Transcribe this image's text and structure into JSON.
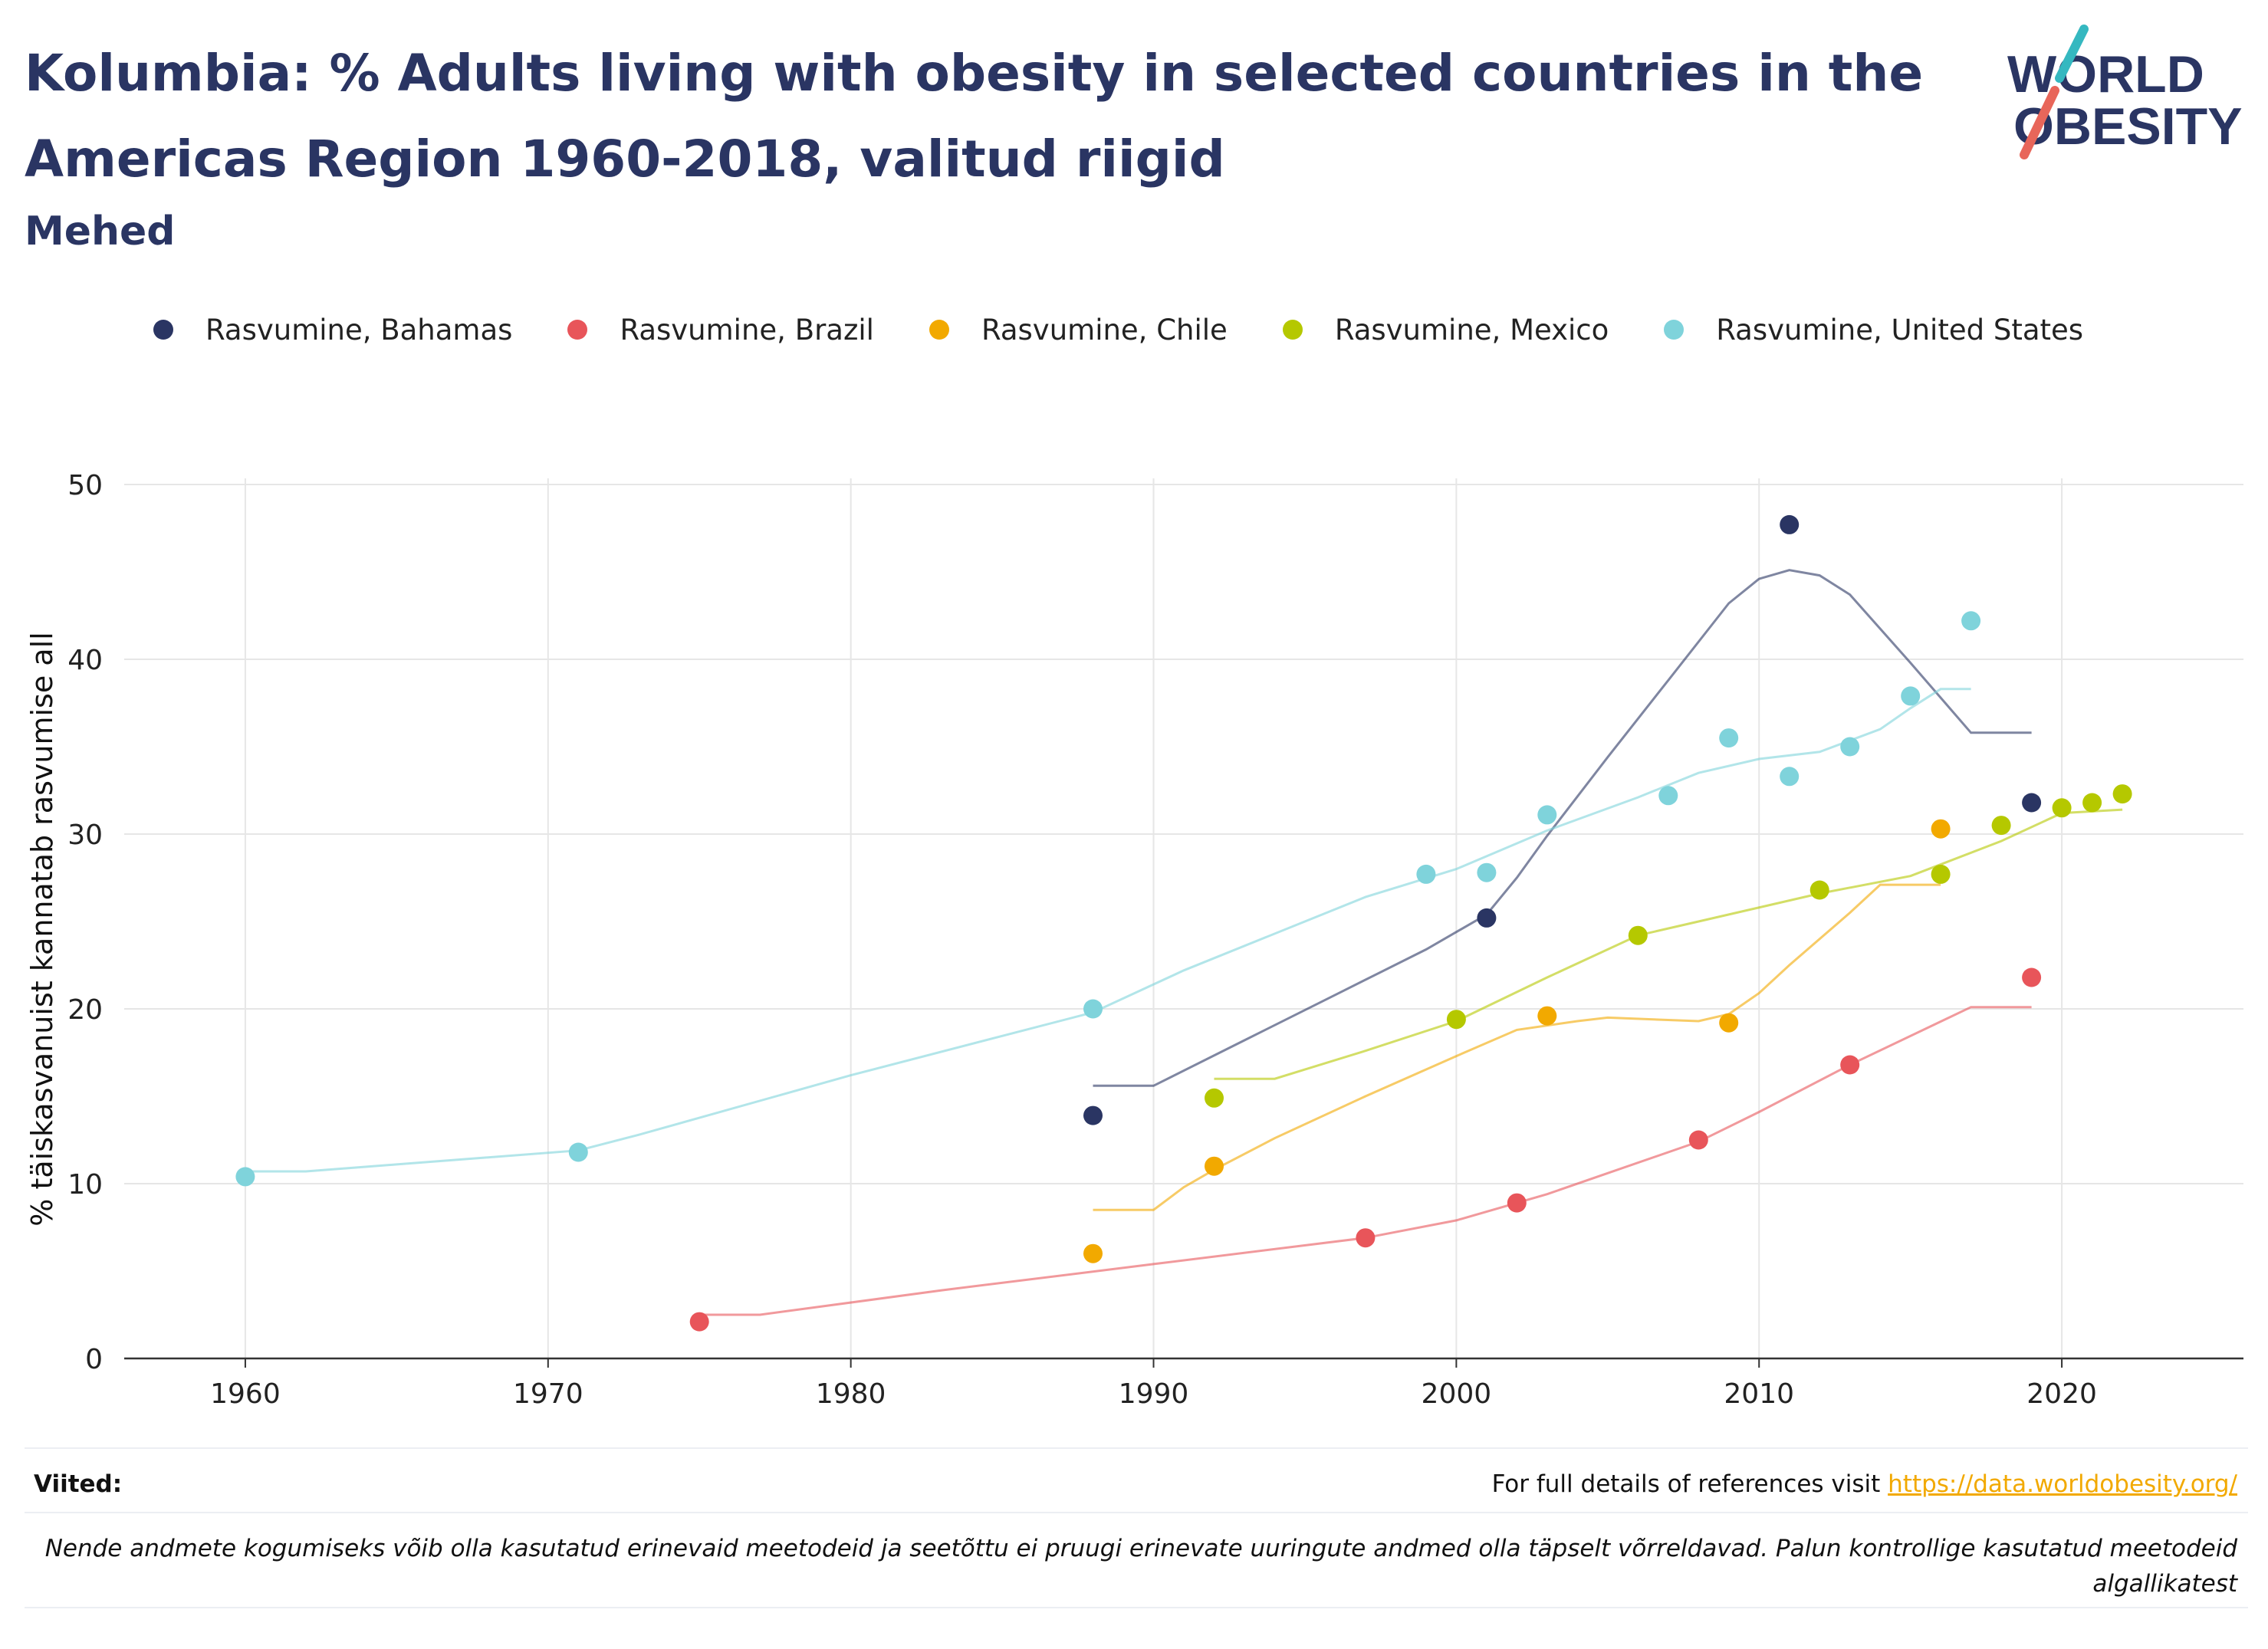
{
  "header": {
    "title": "Kolumbia: % Adults living with obesity in selected countries in the Americas Region 1960-2018, valitud riigid",
    "subtitle": "Mehed"
  },
  "logo": {
    "line1": "WORLD",
    "line2": "OBESITY"
  },
  "footer": {
    "references_label": "Viited:",
    "references_text": "For full details of references visit ",
    "references_link": "https://data.worldobesity.org/",
    "note": "Nende andmete kogumiseks võib olla kasutatud erinevaid meetodeid ja seetõttu ei pruugi erinevate uuringute andmed olla täpselt võrreldavad. Palun kontrollige kasutatud meetodeid algallikatest"
  },
  "chart_data": {
    "type": "scatter",
    "ylabel": "% täiskasvanuist kannatab rasvumise all",
    "xlim": [
      1956,
      2026
    ],
    "ylim": [
      0,
      50
    ],
    "x_ticks": [
      1960,
      1970,
      1980,
      1990,
      2000,
      2010,
      2020
    ],
    "y_ticks": [
      0,
      10,
      20,
      30,
      40,
      50
    ],
    "grid": true,
    "legend_position": "top",
    "series": [
      {
        "name": "Rasvumine, Bahamas",
        "color": "#2a3563",
        "points": [
          [
            1988,
            13.9
          ],
          [
            2001,
            25.2
          ],
          [
            2011,
            47.7
          ],
          [
            2019,
            31.8
          ]
        ],
        "trend": [
          [
            1988,
            15.6
          ],
          [
            1990,
            15.6
          ],
          [
            1993,
            18.2
          ],
          [
            1996,
            20.8
          ],
          [
            1999,
            23.4
          ],
          [
            2001,
            25.4
          ],
          [
            2002,
            27.5
          ],
          [
            2003,
            29.9
          ],
          [
            2005,
            34.4
          ],
          [
            2007,
            38.8
          ],
          [
            2009,
            43.2
          ],
          [
            2010,
            44.6
          ],
          [
            2011,
            45.1
          ],
          [
            2012,
            44.8
          ],
          [
            2013,
            43.7
          ],
          [
            2015,
            39.8
          ],
          [
            2017,
            35.8
          ],
          [
            2019,
            35.8
          ]
        ]
      },
      {
        "name": "Rasvumine, Brazil",
        "color": "#e8555a",
        "points": [
          [
            1975,
            2.1
          ],
          [
            1997,
            6.9
          ],
          [
            2002,
            8.9
          ],
          [
            2008,
            12.5
          ],
          [
            2013,
            16.8
          ],
          [
            2019,
            21.8
          ]
        ],
        "trend": [
          [
            1975,
            2.5
          ],
          [
            1977,
            2.5
          ],
          [
            1983,
            3.9
          ],
          [
            1990,
            5.4
          ],
          [
            1997,
            6.9
          ],
          [
            2000,
            7.9
          ],
          [
            2003,
            9.4
          ],
          [
            2005,
            10.6
          ],
          [
            2008,
            12.4
          ],
          [
            2010,
            14.1
          ],
          [
            2013,
            16.8
          ],
          [
            2017,
            20.1
          ],
          [
            2019,
            20.1
          ]
        ]
      },
      {
        "name": "Rasvumine, Chile",
        "color": "#f2a900",
        "points": [
          [
            1988,
            6.0
          ],
          [
            1992,
            11.0
          ],
          [
            2003,
            19.6
          ],
          [
            2009,
            19.2
          ],
          [
            2016,
            30.3
          ]
        ],
        "trend": [
          [
            1988,
            8.5
          ],
          [
            1990,
            8.5
          ],
          [
            1991,
            9.8
          ],
          [
            1992,
            10.8
          ],
          [
            1994,
            12.6
          ],
          [
            1997,
            15.0
          ],
          [
            2000,
            17.3
          ],
          [
            2002,
            18.8
          ],
          [
            2004,
            19.3
          ],
          [
            2005,
            19.5
          ],
          [
            2008,
            19.3
          ],
          [
            2009,
            19.7
          ],
          [
            2010,
            20.9
          ],
          [
            2011,
            22.5
          ],
          [
            2013,
            25.5
          ],
          [
            2014,
            27.1
          ],
          [
            2016,
            27.1
          ]
        ]
      },
      {
        "name": "Rasvumine, Mexico",
        "color": "#b5c800",
        "points": [
          [
            1992,
            14.9
          ],
          [
            2000,
            19.4
          ],
          [
            2006,
            24.2
          ],
          [
            2012,
            26.8
          ],
          [
            2016,
            27.7
          ],
          [
            2018,
            30.5
          ],
          [
            2020,
            31.5
          ],
          [
            2021,
            31.8
          ],
          [
            2022,
            32.3
          ]
        ],
        "trend": [
          [
            1992,
            16.0
          ],
          [
            1994,
            16.0
          ],
          [
            1997,
            17.6
          ],
          [
            2000,
            19.3
          ],
          [
            2003,
            21.8
          ],
          [
            2006,
            24.2
          ],
          [
            2008,
            25.0
          ],
          [
            2012,
            26.6
          ],
          [
            2015,
            27.6
          ],
          [
            2018,
            29.6
          ],
          [
            2020,
            31.2
          ],
          [
            2022,
            31.4
          ]
        ]
      },
      {
        "name": "Rasvumine, United States",
        "color": "#7fd3db",
        "points": [
          [
            1960,
            10.4
          ],
          [
            1971,
            11.8
          ],
          [
            1988,
            20.0
          ],
          [
            1999,
            27.7
          ],
          [
            2001,
            27.8
          ],
          [
            2003,
            31.1
          ],
          [
            2007,
            32.2
          ],
          [
            2009,
            35.5
          ],
          [
            2011,
            33.3
          ],
          [
            2013,
            35.0
          ],
          [
            2015,
            37.9
          ],
          [
            2017,
            42.2
          ]
        ],
        "trend": [
          [
            1960,
            10.7
          ],
          [
            1962,
            10.7
          ],
          [
            1965,
            11.1
          ],
          [
            1971,
            11.9
          ],
          [
            1973,
            12.8
          ],
          [
            1980,
            16.2
          ],
          [
            1988,
            19.8
          ],
          [
            1991,
            22.2
          ],
          [
            1995,
            25.0
          ],
          [
            1997,
            26.4
          ],
          [
            2000,
            28.0
          ],
          [
            2003,
            30.2
          ],
          [
            2006,
            32.1
          ],
          [
            2008,
            33.5
          ],
          [
            2010,
            34.3
          ],
          [
            2012,
            34.7
          ],
          [
            2014,
            36.0
          ],
          [
            2015,
            37.2
          ],
          [
            2016,
            38.3
          ],
          [
            2017,
            38.3
          ]
        ]
      }
    ]
  }
}
